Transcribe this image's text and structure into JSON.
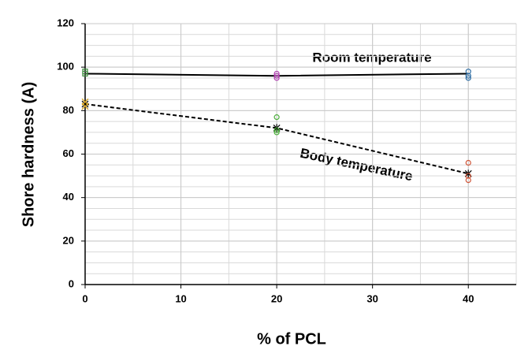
{
  "chart_data": {
    "type": "scatter",
    "xlabel": "% of PCL",
    "ylabel": "Shore hardness (A)",
    "xlim": [
      0,
      45
    ],
    "ylim": [
      0,
      120
    ],
    "xticks": [
      0,
      10,
      20,
      30,
      40
    ],
    "yticks": [
      0,
      20,
      40,
      60,
      80,
      100,
      120
    ],
    "grid": true,
    "annotations": [
      "Room temperature",
      "Body temperature"
    ],
    "series": [
      {
        "color": "#000000",
        "line": "solid",
        "marker": null,
        "x": [
          0,
          20,
          40
        ],
        "values": [
          97,
          96,
          97
        ]
      },
      {
        "color": "#000000",
        "line": "dashed",
        "marker": "star",
        "x": [
          0,
          20,
          40
        ],
        "values": [
          83,
          72,
          51
        ]
      },
      {
        "color": "#3a8a3a",
        "line": null,
        "marker": "square",
        "x": [
          0,
          0
        ],
        "values": [
          97,
          98
        ]
      },
      {
        "color": "#d4a017",
        "line": null,
        "marker": "cross",
        "x": [
          0,
          0
        ],
        "values": [
          82,
          84
        ]
      },
      {
        "color": "#b040b0",
        "line": null,
        "marker": "circle",
        "x": [
          20,
          20,
          20
        ],
        "values": [
          95,
          96,
          97
        ]
      },
      {
        "color": "#4caf3c",
        "line": null,
        "marker": "circle",
        "x": [
          20,
          20,
          20
        ],
        "values": [
          70,
          71,
          77
        ]
      },
      {
        "color": "#2e6da4",
        "line": null,
        "marker": "circle",
        "x": [
          40,
          40,
          40
        ],
        "values": [
          95,
          96,
          98
        ]
      },
      {
        "color": "#d0573a",
        "line": null,
        "marker": "circle",
        "x": [
          40,
          40,
          40
        ],
        "values": [
          48,
          50,
          56
        ]
      }
    ]
  }
}
